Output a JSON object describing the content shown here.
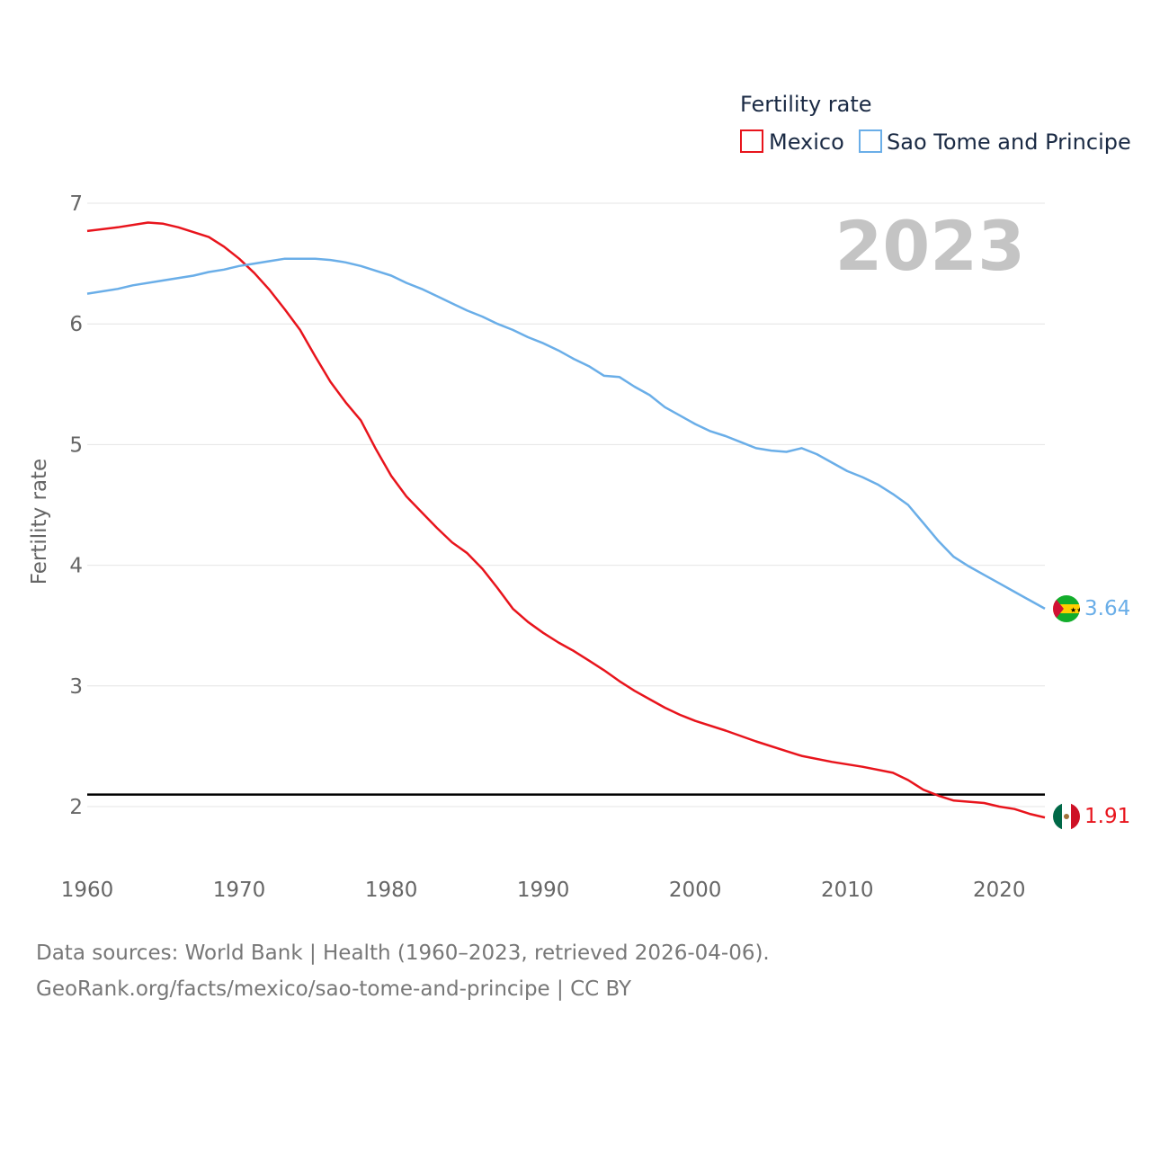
{
  "chart_data": {
    "type": "line",
    "title": "Fertility rate",
    "year_label": "2023",
    "ylabel": "Fertility rate",
    "xlabel": "",
    "xlim": [
      1960,
      2023
    ],
    "ylim": [
      1.5,
      7
    ],
    "x_ticks": [
      1960,
      1970,
      1980,
      1990,
      2000,
      2010,
      2020
    ],
    "y_ticks": [
      2,
      3,
      4,
      5,
      6,
      7
    ],
    "reference_line": 2.1,
    "legend": {
      "title": "Fertility rate",
      "position": "top-right"
    },
    "series": [
      {
        "name": "Mexico",
        "color": "#e8141c",
        "end_label": "1.91",
        "flag_icon": "mexico-flag-icon",
        "points": [
          [
            1960,
            6.77
          ],
          [
            1962,
            6.8
          ],
          [
            1964,
            6.84
          ],
          [
            1965,
            6.83
          ],
          [
            1966,
            6.8
          ],
          [
            1968,
            6.72
          ],
          [
            1969,
            6.64
          ],
          [
            1970,
            6.54
          ],
          [
            1971,
            6.42
          ],
          [
            1972,
            6.28
          ],
          [
            1973,
            6.12
          ],
          [
            1974,
            5.95
          ],
          [
            1975,
            5.73
          ],
          [
            1976,
            5.52
          ],
          [
            1977,
            5.35
          ],
          [
            1978,
            5.2
          ],
          [
            1979,
            4.96
          ],
          [
            1980,
            4.74
          ],
          [
            1981,
            4.57
          ],
          [
            1982,
            4.44
          ],
          [
            1983,
            4.31
          ],
          [
            1984,
            4.19
          ],
          [
            1985,
            4.1
          ],
          [
            1986,
            3.97
          ],
          [
            1987,
            3.81
          ],
          [
            1988,
            3.64
          ],
          [
            1989,
            3.53
          ],
          [
            1990,
            3.44
          ],
          [
            1991,
            3.36
          ],
          [
            1992,
            3.29
          ],
          [
            1993,
            3.21
          ],
          [
            1994,
            3.13
          ],
          [
            1995,
            3.04
          ],
          [
            1996,
            2.96
          ],
          [
            1997,
            2.89
          ],
          [
            1998,
            2.82
          ],
          [
            1999,
            2.76
          ],
          [
            2000,
            2.71
          ],
          [
            2002,
            2.63
          ],
          [
            2004,
            2.54
          ],
          [
            2006,
            2.46
          ],
          [
            2007,
            2.42
          ],
          [
            2009,
            2.37
          ],
          [
            2011,
            2.33
          ],
          [
            2013,
            2.28
          ],
          [
            2014,
            2.22
          ],
          [
            2015,
            2.14
          ],
          [
            2016,
            2.09
          ],
          [
            2017,
            2.05
          ],
          [
            2019,
            2.03
          ],
          [
            2020,
            2.0
          ],
          [
            2021,
            1.98
          ],
          [
            2022,
            1.94
          ],
          [
            2023,
            1.91
          ]
        ]
      },
      {
        "name": "Sao Tome and Principe",
        "color": "#6aaee8",
        "end_label": "3.64",
        "flag_icon": "sao-tome-flag-icon",
        "points": [
          [
            1960,
            6.25
          ],
          [
            1962,
            6.29
          ],
          [
            1963,
            6.32
          ],
          [
            1965,
            6.36
          ],
          [
            1967,
            6.4
          ],
          [
            1968,
            6.43
          ],
          [
            1969,
            6.45
          ],
          [
            1970,
            6.48
          ],
          [
            1971,
            6.5
          ],
          [
            1972,
            6.52
          ],
          [
            1973,
            6.54
          ],
          [
            1974,
            6.54
          ],
          [
            1975,
            6.54
          ],
          [
            1976,
            6.53
          ],
          [
            1977,
            6.51
          ],
          [
            1978,
            6.48
          ],
          [
            1979,
            6.44
          ],
          [
            1980,
            6.4
          ],
          [
            1981,
            6.34
          ],
          [
            1982,
            6.29
          ],
          [
            1983,
            6.23
          ],
          [
            1984,
            6.17
          ],
          [
            1985,
            6.11
          ],
          [
            1986,
            6.06
          ],
          [
            1987,
            6.0
          ],
          [
            1988,
            5.95
          ],
          [
            1989,
            5.89
          ],
          [
            1990,
            5.84
          ],
          [
            1991,
            5.78
          ],
          [
            1992,
            5.71
          ],
          [
            1993,
            5.65
          ],
          [
            1994,
            5.57
          ],
          [
            1995,
            5.56
          ],
          [
            1996,
            5.48
          ],
          [
            1997,
            5.41
          ],
          [
            1998,
            5.31
          ],
          [
            1999,
            5.24
          ],
          [
            2000,
            5.17
          ],
          [
            2001,
            5.11
          ],
          [
            2002,
            5.07
          ],
          [
            2003,
            5.02
          ],
          [
            2004,
            4.97
          ],
          [
            2005,
            4.95
          ],
          [
            2006,
            4.94
          ],
          [
            2007,
            4.97
          ],
          [
            2008,
            4.92
          ],
          [
            2009,
            4.85
          ],
          [
            2010,
            4.78
          ],
          [
            2011,
            4.73
          ],
          [
            2012,
            4.67
          ],
          [
            2013,
            4.59
          ],
          [
            2014,
            4.5
          ],
          [
            2015,
            4.35
          ],
          [
            2016,
            4.2
          ],
          [
            2017,
            4.07
          ],
          [
            2018,
            3.99
          ],
          [
            2019,
            3.92
          ],
          [
            2020,
            3.85
          ],
          [
            2021,
            3.78
          ],
          [
            2022,
            3.71
          ],
          [
            2023,
            3.64
          ]
        ]
      }
    ]
  },
  "footer": {
    "line1": "Data sources: World Bank | Health (1960–2023, retrieved 2026-04-06).",
    "line2": "GeoRank.org/facts/mexico/sao-tome-and-principe | CC BY"
  }
}
